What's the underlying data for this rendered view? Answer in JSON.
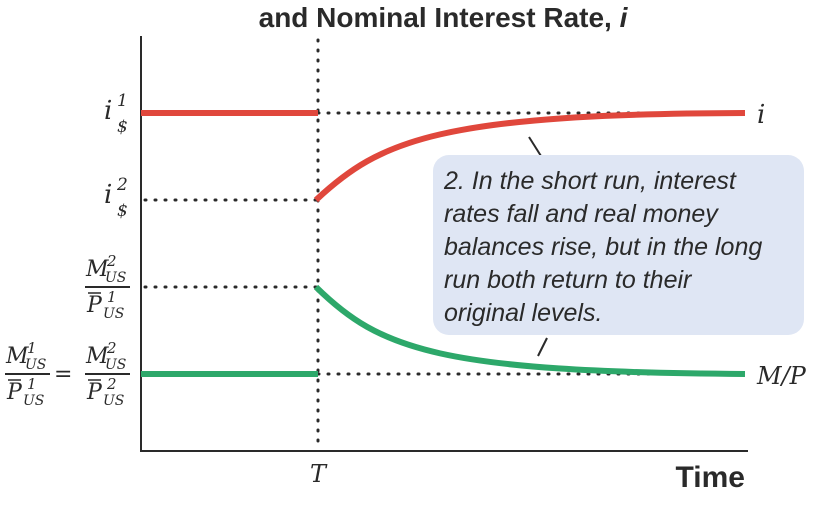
{
  "chart_data": {
    "type": "line",
    "title": "and Nominal Interest Rate,",
    "title_symbol": "i",
    "xlabel": "Time",
    "x_event_label": "T",
    "grid": false,
    "series": [
      {
        "name": "i",
        "color": "#e0473c",
        "before_T": "i$1",
        "after_T_start": "i$2",
        "long_run": "i$1"
      },
      {
        "name": "M/P",
        "color": "#2da86a",
        "before_T": "M1US/P1US = M2US/P2US",
        "after_T_start": "M2US/P1US",
        "long_run": "M2US/P2US"
      }
    ],
    "y_labels": {
      "i1": {
        "base": "i",
        "sup": "1",
        "sub": "$"
      },
      "i2": {
        "base": "i",
        "sup": "2",
        "sub": "$"
      },
      "mp_short": {
        "num_base": "M",
        "num_sup": "2",
        "num_sub": "US",
        "den_base": "P",
        "den_sup": "1",
        "den_sub": "US"
      },
      "mp_eq_left": {
        "num_base": "M",
        "num_sup": "1",
        "num_sub": "US",
        "den_base": "P",
        "den_sup": "1",
        "den_sub": "US"
      },
      "mp_eq_right": {
        "num_base": "M",
        "num_sup": "2",
        "num_sub": "US",
        "den_base": "P",
        "den_sup": "2",
        "den_sub": "US"
      },
      "equals": "="
    },
    "annotation": {
      "lines": [
        "2. In the short run, interest",
        "rates fall and real money",
        "balances rise, but in the long",
        "run both return to their",
        "original levels."
      ],
      "fill": "#dfe6f4"
    }
  }
}
